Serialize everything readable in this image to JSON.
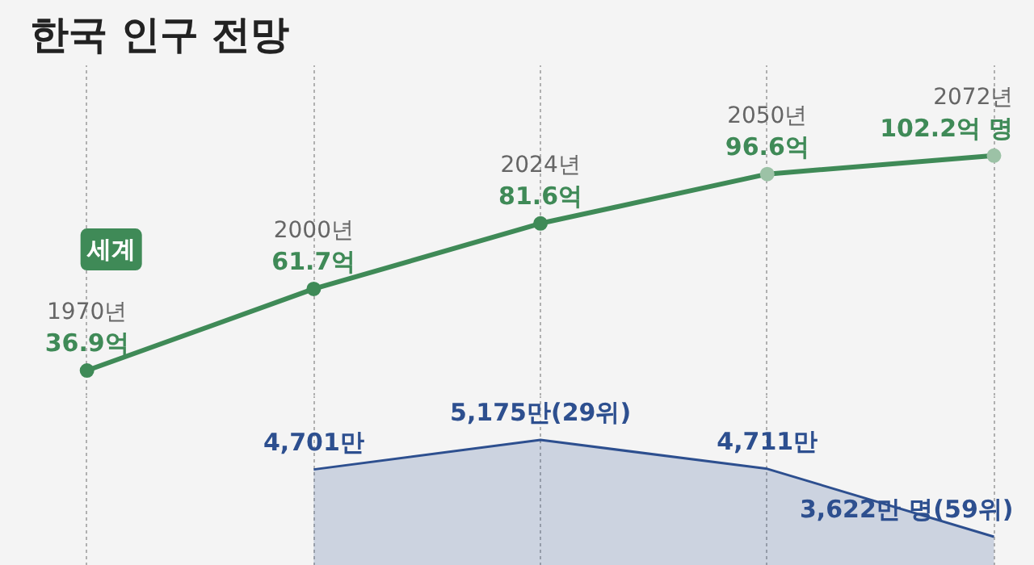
{
  "chart_data": [
    {
      "type": "line",
      "title": "한국 인구 전망",
      "categories": [
        null,
        null,
        null,
        null,
        null
      ],
      "tick_labels": false,
      "grid": "x",
      "marker": "circle",
      "series": [
        {
          "name": "세계",
          "color": "#3f8a57",
          "colors": [
            "#3f8a57",
            "#3f8a57",
            "#3f8a57",
            "#9cc2a6",
            "#9cc2a6"
          ],
          "values": [
            36.9,
            61.7,
            81.6,
            96.6,
            102.2
          ],
          "value_labels": [
            "36.9억",
            "61.7억",
            "81.6억",
            "96.6억",
            "102.2억 명"
          ]
        }
      ],
      "annotations": [
        "1970년",
        "2000년",
        "2024년",
        "2050년",
        "2072년"
      ]
    },
    {
      "type": "area",
      "categories": [
        null,
        null,
        null,
        null,
        null
      ],
      "tick_labels": false,
      "grid": "x",
      "series": [
        {
          "color": "#2d4f8f",
          "values": [
            null,
            4701,
            5175,
            4711,
            3622
          ],
          "value_labels": [
            null,
            "4,701만",
            "5,175만(29위)",
            "4,711만",
            "3,622만 명(59위)"
          ]
        }
      ]
    }
  ]
}
